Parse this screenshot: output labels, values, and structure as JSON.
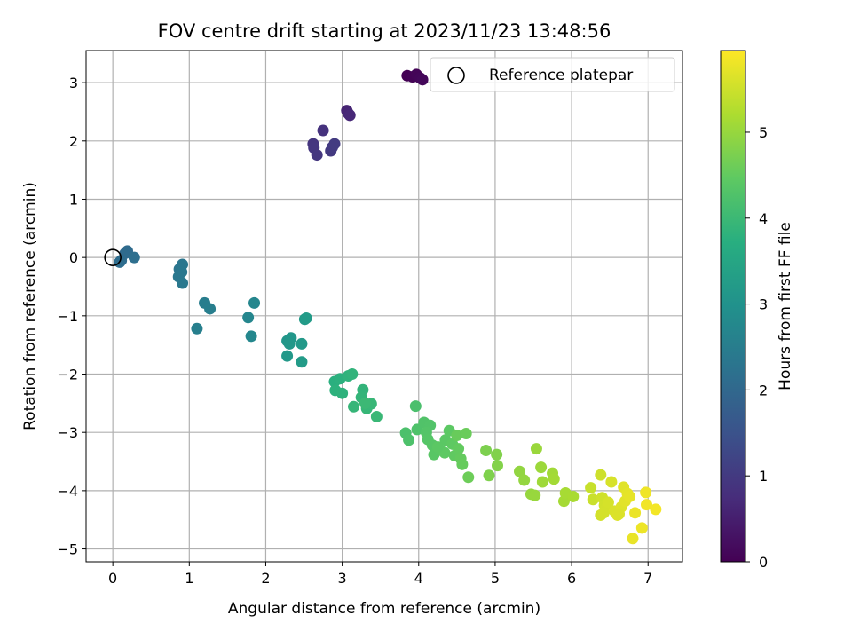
{
  "chart_data": {
    "type": "scatter",
    "title": "FOV centre drift starting at 2023/11/23 13:48:56",
    "xlabel": "Angular distance from reference (arcmin)",
    "ylabel": "Rotation from reference (arcmin)",
    "xlim": [
      -0.35,
      7.45
    ],
    "ylim": [
      -5.22,
      3.55
    ],
    "xticks": [
      0,
      1,
      2,
      3,
      4,
      5,
      6,
      7
    ],
    "yticks": [
      -5,
      -4,
      -3,
      -2,
      -1,
      0,
      1,
      2,
      3
    ],
    "grid": true,
    "colormap": "viridis",
    "colorbar": {
      "label": "Hours from first FF file",
      "range": [
        0,
        5.95
      ],
      "ticks": [
        0,
        1,
        2,
        3,
        4,
        5
      ]
    },
    "legend": {
      "position": "top-right",
      "entries": [
        {
          "label": "Reference platepar",
          "marker": "open-circle",
          "x": 0,
          "y": 0
        }
      ]
    },
    "points": [
      [
        3.85,
        3.12,
        0.0
      ],
      [
        3.92,
        3.1,
        0.03
      ],
      [
        3.97,
        3.14,
        0.06
      ],
      [
        4.02,
        3.08,
        0.09
      ],
      [
        4.05,
        3.05,
        0.12
      ],
      [
        3.06,
        2.52,
        0.6
      ],
      [
        3.08,
        2.47,
        0.63
      ],
      [
        3.1,
        2.44,
        0.66
      ],
      [
        2.75,
        2.18,
        0.85
      ],
      [
        2.62,
        1.95,
        0.9
      ],
      [
        2.63,
        1.88,
        0.92
      ],
      [
        2.67,
        1.76,
        0.95
      ],
      [
        2.85,
        1.83,
        0.98
      ],
      [
        2.87,
        1.89,
        1.0
      ],
      [
        2.9,
        1.95,
        1.02
      ],
      [
        0.16,
        0.07,
        2.05
      ],
      [
        0.19,
        0.11,
        2.08
      ],
      [
        0.11,
        -0.05,
        2.1
      ],
      [
        0.09,
        -0.08,
        2.12
      ],
      [
        0.28,
        0.0,
        2.15
      ],
      [
        0.87,
        -0.2,
        2.3
      ],
      [
        0.91,
        -0.12,
        2.32
      ],
      [
        0.9,
        -0.25,
        2.34
      ],
      [
        0.86,
        -0.33,
        2.36
      ],
      [
        0.91,
        -0.44,
        2.38
      ],
      [
        1.2,
        -0.78,
        2.5
      ],
      [
        1.27,
        -0.88,
        2.52
      ],
      [
        1.1,
        -1.22,
        2.55
      ],
      [
        1.77,
        -1.03,
        2.7
      ],
      [
        1.85,
        -0.78,
        2.72
      ],
      [
        1.81,
        -1.35,
        2.74
      ],
      [
        2.28,
        -1.43,
        3.1
      ],
      [
        2.33,
        -1.38,
        3.12
      ],
      [
        2.31,
        -1.48,
        3.14
      ],
      [
        2.28,
        -1.69,
        3.16
      ],
      [
        2.47,
        -1.48,
        3.18
      ],
      [
        2.51,
        -1.06,
        3.2
      ],
      [
        2.53,
        -1.04,
        3.22
      ],
      [
        2.47,
        -1.79,
        3.24
      ],
      [
        2.9,
        -2.13,
        3.75
      ],
      [
        2.97,
        -2.08,
        3.77
      ],
      [
        2.91,
        -2.28,
        3.79
      ],
      [
        3.0,
        -2.33,
        3.81
      ],
      [
        3.08,
        -2.03,
        3.83
      ],
      [
        3.13,
        -2.0,
        3.85
      ],
      [
        3.27,
        -2.27,
        3.87
      ],
      [
        3.25,
        -2.4,
        3.89
      ],
      [
        3.15,
        -2.56,
        3.91
      ],
      [
        3.32,
        -2.59,
        3.93
      ],
      [
        3.38,
        -2.51,
        3.95
      ],
      [
        3.45,
        -2.73,
        3.97
      ],
      [
        3.3,
        -2.5,
        3.99
      ],
      [
        3.96,
        -2.55,
        4.2
      ],
      [
        3.83,
        -3.01,
        4.22
      ],
      [
        3.87,
        -3.13,
        4.24
      ],
      [
        3.98,
        -2.95,
        4.26
      ],
      [
        4.07,
        -2.83,
        4.28
      ],
      [
        4.15,
        -2.88,
        4.3
      ],
      [
        4.1,
        -3.0,
        4.32
      ],
      [
        4.12,
        -3.12,
        4.34
      ],
      [
        4.18,
        -3.22,
        4.36
      ],
      [
        4.2,
        -3.38,
        4.38
      ],
      [
        4.28,
        -3.3,
        4.4
      ],
      [
        4.35,
        -3.13,
        4.42
      ],
      [
        4.4,
        -2.97,
        4.44
      ],
      [
        4.44,
        -3.2,
        4.46
      ],
      [
        4.47,
        -3.4,
        4.48
      ],
      [
        4.52,
        -3.28,
        4.5
      ],
      [
        4.55,
        -3.45,
        4.52
      ],
      [
        4.57,
        -3.55,
        4.54
      ],
      [
        4.5,
        -3.05,
        4.56
      ],
      [
        4.62,
        -3.02,
        4.58
      ],
      [
        4.65,
        -3.77,
        4.6
      ],
      [
        4.34,
        -3.35,
        4.45
      ],
      [
        4.25,
        -3.25,
        4.42
      ],
      [
        4.88,
        -3.31,
        4.75
      ],
      [
        4.92,
        -3.74,
        4.77
      ],
      [
        5.02,
        -3.38,
        4.79
      ],
      [
        5.03,
        -3.57,
        4.81
      ],
      [
        5.32,
        -3.67,
        4.95
      ],
      [
        5.38,
        -3.82,
        4.97
      ],
      [
        5.47,
        -4.06,
        4.99
      ],
      [
        5.52,
        -4.08,
        5.01
      ],
      [
        5.54,
        -3.28,
        5.03
      ],
      [
        5.6,
        -3.6,
        5.05
      ],
      [
        5.62,
        -3.85,
        5.07
      ],
      [
        5.75,
        -3.7,
        5.09
      ],
      [
        5.77,
        -3.8,
        5.11
      ],
      [
        5.9,
        -4.18,
        5.13
      ],
      [
        5.92,
        -4.04,
        5.15
      ],
      [
        6.02,
        -4.1,
        5.17
      ],
      [
        6.25,
        -3.95,
        5.45
      ],
      [
        6.28,
        -4.15,
        5.47
      ],
      [
        6.38,
        -3.73,
        5.5
      ],
      [
        6.4,
        -4.12,
        5.52
      ],
      [
        6.43,
        -4.25,
        5.54
      ],
      [
        6.45,
        -4.3,
        5.56
      ],
      [
        6.48,
        -4.2,
        5.58
      ],
      [
        6.52,
        -3.85,
        5.6
      ],
      [
        6.56,
        -4.35,
        5.62
      ],
      [
        6.6,
        -4.42,
        5.64
      ],
      [
        6.65,
        -4.28,
        5.66
      ],
      [
        6.68,
        -3.94,
        5.68
      ],
      [
        6.7,
        -4.18,
        5.7
      ],
      [
        6.73,
        -4.05,
        5.72
      ],
      [
        6.76,
        -4.1,
        5.74
      ],
      [
        6.8,
        -4.82,
        5.76
      ],
      [
        6.83,
        -4.38,
        5.78
      ],
      [
        6.92,
        -4.64,
        5.8
      ],
      [
        6.97,
        -4.03,
        5.82
      ],
      [
        6.98,
        -4.24,
        5.84
      ],
      [
        7.1,
        -4.32,
        5.86
      ],
      [
        6.38,
        -4.42,
        5.55
      ],
      [
        6.42,
        -4.38,
        5.57
      ],
      [
        6.62,
        -4.4,
        5.63
      ]
    ]
  }
}
